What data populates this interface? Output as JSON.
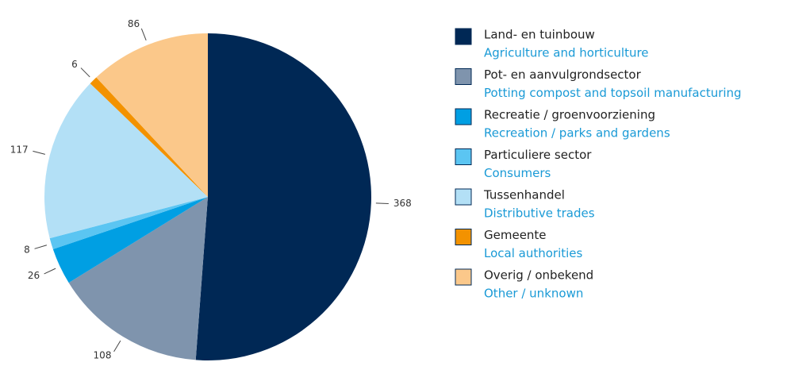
{
  "chart_data": {
    "type": "pie",
    "categories": [
      "Land- en tuinbouw",
      "Pot- en aanvulgrondsector",
      "Recreatie / groenvoorziening",
      "Particuliere sector",
      "Tussenhandel",
      "Gemeente",
      "Overig / onbekend"
    ],
    "category_translations": [
      "Agriculture and horticulture",
      "Potting compost and topsoil manufacturing",
      "Recreation / parks and gardens",
      "Consumers",
      "Distributive trades",
      "Local authorities",
      "Other / unknown"
    ],
    "values": [
      368,
      108,
      26,
      8,
      117,
      6,
      86
    ],
    "colors": [
      "#002855",
      "#7f94ad",
      "#009fe3",
      "#5bc5f2",
      "#b3e0f6",
      "#f39200",
      "#fbc88a"
    ]
  }
}
